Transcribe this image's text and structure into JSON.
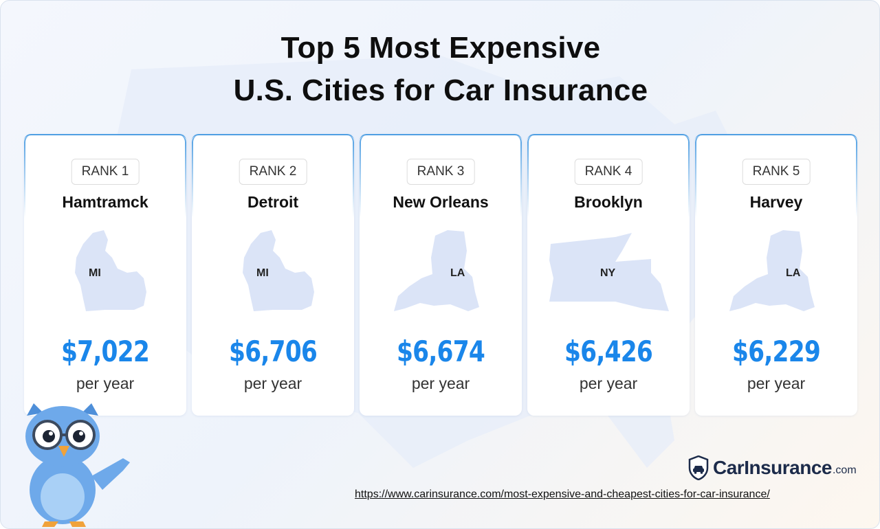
{
  "title": {
    "line1": "Top 5 Most Expensive",
    "line2": "U.S. Cities for Car Insurance"
  },
  "cards": [
    {
      "rank": "RANK 1",
      "city": "Hamtramck",
      "state": "MI",
      "shape": "michigan",
      "price": "$7,022",
      "period": "per year"
    },
    {
      "rank": "RANK 2",
      "city": "Detroit",
      "state": "MI",
      "shape": "michigan",
      "price": "$6,706",
      "period": "per year"
    },
    {
      "rank": "RANK 3",
      "city": "New Orleans",
      "state": "LA",
      "shape": "louisiana",
      "price": "$6,674",
      "period": "per year"
    },
    {
      "rank": "RANK 4",
      "city": "Brooklyn",
      "state": "NY",
      "shape": "new-york",
      "price": "$6,426",
      "period": "per year"
    },
    {
      "rank": "RANK 5",
      "city": "Harvey",
      "state": "LA",
      "shape": "louisiana",
      "price": "$6,229",
      "period": "per year"
    }
  ],
  "brand": {
    "name": "CarInsurance",
    "tld": ".com",
    "icon": "shield-car-icon"
  },
  "source_url": "https://www.carinsurance.com/most-expensive-and-cheapest-cities-for-car-insurance/",
  "mascot": "owl-mascot",
  "colors": {
    "accent": "#1a86ea",
    "card_border": "#4f9fe3",
    "state_fill": "#dbe4f7",
    "brand": "#1c2b4a"
  }
}
